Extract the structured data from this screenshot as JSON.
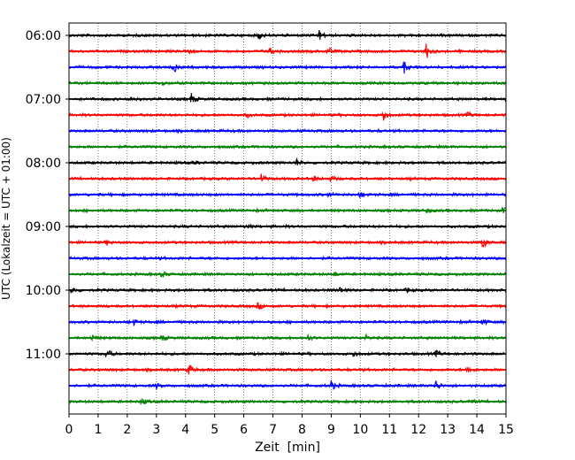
{
  "chart_data": {
    "type": "line",
    "title": "",
    "xlabel": "Zeit  [min]",
    "ylabel": "UTC (Lokalzeit = UTC + 01:00)",
    "xlim": [
      0,
      15
    ],
    "x_ticks": [
      0,
      1,
      2,
      3,
      4,
      5,
      6,
      7,
      8,
      9,
      10,
      11,
      12,
      13,
      14,
      15
    ],
    "y_tick_labels": [
      "06:00",
      "07:00",
      "08:00",
      "09:00",
      "10:00",
      "11:00"
    ],
    "grid": "vertical dotted at each minute",
    "legend": "none",
    "row_minutes": 15,
    "trace_colors": [
      "#000000",
      "#ff0000",
      "#0000ff",
      "#008000"
    ],
    "rows": [
      {
        "start": "06:00",
        "color": "#000000",
        "events": [
          {
            "t": 6.5,
            "a": 0.6
          },
          {
            "t": 8.6,
            "a": 0.7
          }
        ]
      },
      {
        "start": "06:15",
        "color": "#ff0000",
        "events": [
          {
            "t": 4.0,
            "a": 0.5
          },
          {
            "t": 6.9,
            "a": 0.4
          },
          {
            "t": 8.9,
            "a": 0.6
          },
          {
            "t": 12.25,
            "a": 1.3
          }
        ]
      },
      {
        "start": "06:30",
        "color": "#0000ff",
        "events": [
          {
            "t": 3.6,
            "a": 0.8
          },
          {
            "t": 11.5,
            "a": 0.8
          }
        ]
      },
      {
        "start": "06:45",
        "color": "#008000",
        "events": [
          {
            "t": 3.2,
            "a": 0.3
          }
        ]
      },
      {
        "start": "07:00",
        "color": "#000000",
        "events": [
          {
            "t": 4.2,
            "a": 0.7
          },
          {
            "t": 2.1,
            "a": 0.3
          }
        ]
      },
      {
        "start": "07:15",
        "color": "#ff0000",
        "events": [
          {
            "t": 10.8,
            "a": 0.8
          },
          {
            "t": 6.1,
            "a": 0.3
          },
          {
            "t": 13.7,
            "a": 0.3
          }
        ]
      },
      {
        "start": "07:30",
        "color": "#0000ff",
        "events": []
      },
      {
        "start": "07:45",
        "color": "#008000",
        "events": []
      },
      {
        "start": "08:00",
        "color": "#000000",
        "events": [
          {
            "t": 7.8,
            "a": 0.5
          },
          {
            "t": 4.3,
            "a": 0.3
          }
        ]
      },
      {
        "start": "08:15",
        "color": "#ff0000",
        "events": [
          {
            "t": 6.6,
            "a": 0.6
          },
          {
            "t": 8.4,
            "a": 0.4
          },
          {
            "t": 9.0,
            "a": 0.4
          }
        ]
      },
      {
        "start": "08:30",
        "color": "#0000ff",
        "events": [
          {
            "t": 10.0,
            "a": 0.4
          },
          {
            "t": 8.9,
            "a": 0.3
          }
        ]
      },
      {
        "start": "08:45",
        "color": "#008000",
        "events": [
          {
            "t": 12.3,
            "a": 0.3
          },
          {
            "t": 14.9,
            "a": 0.4
          }
        ]
      },
      {
        "start": "09:00",
        "color": "#000000",
        "events": [
          {
            "t": 6.1,
            "a": 0.3
          }
        ]
      },
      {
        "start": "09:15",
        "color": "#ff0000",
        "events": [
          {
            "t": 14.2,
            "a": 0.9
          },
          {
            "t": 1.3,
            "a": 0.3
          }
        ]
      },
      {
        "start": "09:30",
        "color": "#0000ff",
        "events": []
      },
      {
        "start": "09:45",
        "color": "#008000",
        "events": [
          {
            "t": 3.2,
            "a": 0.4
          },
          {
            "t": 9.1,
            "a": 0.3
          }
        ]
      },
      {
        "start": "10:00",
        "color": "#000000",
        "events": [
          {
            "t": 0.1,
            "a": 0.4
          },
          {
            "t": 9.3,
            "a": 0.4
          },
          {
            "t": 11.6,
            "a": 0.3
          }
        ]
      },
      {
        "start": "10:15",
        "color": "#ff0000",
        "events": [
          {
            "t": 6.5,
            "a": 0.5
          }
        ]
      },
      {
        "start": "10:30",
        "color": "#0000ff",
        "events": [
          {
            "t": 2.2,
            "a": 0.5
          },
          {
            "t": 14.2,
            "a": 0.5
          }
        ]
      },
      {
        "start": "10:45",
        "color": "#008000",
        "events": [
          {
            "t": 0.8,
            "a": 0.4
          },
          {
            "t": 3.2,
            "a": 0.4
          },
          {
            "t": 8.2,
            "a": 0.4
          },
          {
            "t": 10.2,
            "a": 0.3
          }
        ]
      },
      {
        "start": "11:00",
        "color": "#000000",
        "events": [
          {
            "t": 1.3,
            "a": 0.7
          },
          {
            "t": 9.8,
            "a": 0.4
          },
          {
            "t": 12.6,
            "a": 0.4
          }
        ]
      },
      {
        "start": "11:15",
        "color": "#ff0000",
        "events": [
          {
            "t": 4.1,
            "a": 0.9
          },
          {
            "t": 13.7,
            "a": 0.6
          }
        ]
      },
      {
        "start": "11:30",
        "color": "#0000ff",
        "events": [
          {
            "t": 9.0,
            "a": 0.7
          },
          {
            "t": 12.6,
            "a": 0.7
          },
          {
            "t": 3.0,
            "a": 0.3
          }
        ]
      },
      {
        "start": "11:45",
        "color": "#008000",
        "events": [
          {
            "t": 2.5,
            "a": 0.5
          },
          {
            "t": 13.8,
            "a": 0.3
          }
        ]
      }
    ]
  }
}
